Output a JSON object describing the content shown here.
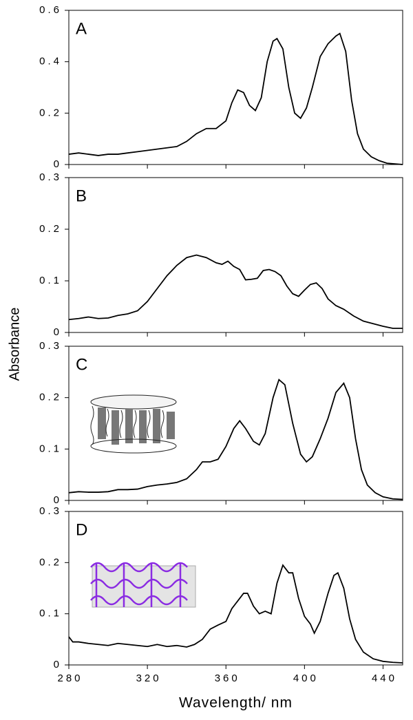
{
  "y_label": "Absorbance",
  "chart_data": [
    {
      "type": "line",
      "label": "A",
      "color": "#000000",
      "x": [
        280,
        285,
        290,
        295,
        300,
        305,
        310,
        315,
        320,
        325,
        330,
        335,
        340,
        345,
        350,
        355,
        360,
        363,
        366,
        369,
        372,
        375,
        378,
        381,
        384,
        386,
        389,
        392,
        395,
        398,
        401,
        404,
        408,
        412,
        416,
        418,
        421,
        424,
        427,
        430,
        434,
        438,
        442,
        450
      ],
      "values": [
        0.04,
        0.045,
        0.04,
        0.035,
        0.04,
        0.04,
        0.045,
        0.05,
        0.055,
        0.06,
        0.065,
        0.07,
        0.09,
        0.12,
        0.14,
        0.14,
        0.17,
        0.24,
        0.29,
        0.28,
        0.23,
        0.21,
        0.26,
        0.4,
        0.48,
        0.49,
        0.45,
        0.3,
        0.2,
        0.18,
        0.22,
        0.3,
        0.42,
        0.47,
        0.5,
        0.51,
        0.44,
        0.25,
        0.12,
        0.06,
        0.03,
        0.015,
        0.005,
        0
      ],
      "xlim": [
        280,
        450
      ],
      "ylim": [
        0,
        0.6
      ],
      "yticks": [
        0,
        0.2,
        0.4,
        0.6
      ]
    },
    {
      "type": "line",
      "label": "B",
      "color": "#000000",
      "x": [
        280,
        285,
        290,
        295,
        300,
        305,
        310,
        315,
        320,
        325,
        330,
        335,
        340,
        345,
        350,
        355,
        358,
        361,
        364,
        367,
        370,
        373,
        376,
        379,
        382,
        385,
        388,
        391,
        394,
        397,
        400,
        403,
        406,
        409,
        412,
        416,
        420,
        425,
        430,
        435,
        440,
        445,
        450
      ],
      "values": [
        0.025,
        0.027,
        0.03,
        0.027,
        0.028,
        0.033,
        0.036,
        0.042,
        0.06,
        0.085,
        0.11,
        0.13,
        0.145,
        0.15,
        0.145,
        0.135,
        0.132,
        0.138,
        0.128,
        0.122,
        0.102,
        0.103,
        0.105,
        0.12,
        0.122,
        0.118,
        0.11,
        0.09,
        0.075,
        0.07,
        0.082,
        0.093,
        0.096,
        0.085,
        0.065,
        0.052,
        0.045,
        0.032,
        0.022,
        0.017,
        0.012,
        0.008,
        0.008
      ],
      "xlim": [
        280,
        450
      ],
      "ylim": [
        0,
        0.3
      ],
      "yticks": [
        0,
        0.1,
        0.2,
        0.3
      ]
    },
    {
      "type": "line",
      "label": "C",
      "color": "#000000",
      "x": [
        280,
        285,
        290,
        295,
        300,
        305,
        310,
        315,
        320,
        325,
        330,
        335,
        340,
        345,
        348,
        352,
        356,
        360,
        364,
        367,
        370,
        374,
        377,
        380,
        384,
        387,
        390,
        394,
        398,
        401,
        404,
        408,
        412,
        416,
        420,
        423,
        426,
        429,
        432,
        436,
        440,
        445,
        450
      ],
      "values": [
        0.015,
        0.017,
        0.016,
        0.016,
        0.017,
        0.021,
        0.021,
        0.022,
        0.027,
        0.03,
        0.032,
        0.035,
        0.042,
        0.06,
        0.075,
        0.075,
        0.08,
        0.105,
        0.14,
        0.155,
        0.14,
        0.115,
        0.108,
        0.13,
        0.2,
        0.235,
        0.225,
        0.15,
        0.09,
        0.075,
        0.085,
        0.12,
        0.16,
        0.21,
        0.228,
        0.2,
        0.12,
        0.06,
        0.03,
        0.015,
        0.007,
        0.003,
        0.002
      ],
      "xlim": [
        280,
        450
      ],
      "ylim": [
        0,
        0.3
      ],
      "yticks": [
        0,
        0.1,
        0.2,
        0.3
      ]
    },
    {
      "type": "line",
      "label": "D",
      "color": "#000000",
      "x": [
        280,
        282,
        285,
        290,
        295,
        300,
        305,
        310,
        315,
        320,
        325,
        330,
        335,
        340,
        344,
        348,
        352,
        356,
        360,
        363,
        366,
        369,
        371,
        374,
        377,
        380,
        383,
        386,
        389,
        392,
        394,
        397,
        400,
        403,
        405,
        408,
        412,
        415,
        417,
        420,
        423,
        426,
        430,
        435,
        440,
        445,
        450
      ],
      "values": [
        0.055,
        0.045,
        0.045,
        0.042,
        0.04,
        0.038,
        0.042,
        0.04,
        0.038,
        0.036,
        0.04,
        0.036,
        0.038,
        0.035,
        0.04,
        0.05,
        0.07,
        0.078,
        0.085,
        0.11,
        0.125,
        0.14,
        0.14,
        0.115,
        0.1,
        0.105,
        0.1,
        0.16,
        0.195,
        0.18,
        0.18,
        0.13,
        0.095,
        0.08,
        0.062,
        0.085,
        0.14,
        0.175,
        0.18,
        0.15,
        0.09,
        0.05,
        0.025,
        0.012,
        0.007,
        0.005,
        0.004
      ],
      "xlim": [
        280,
        450
      ],
      "ylim": [
        0,
        0.3
      ],
      "yticks": [
        0,
        0.1,
        0.2,
        0.3
      ],
      "xticks": [
        280,
        320,
        360,
        400,
        440
      ],
      "xlabel": "Wavelength/ nm"
    }
  ]
}
